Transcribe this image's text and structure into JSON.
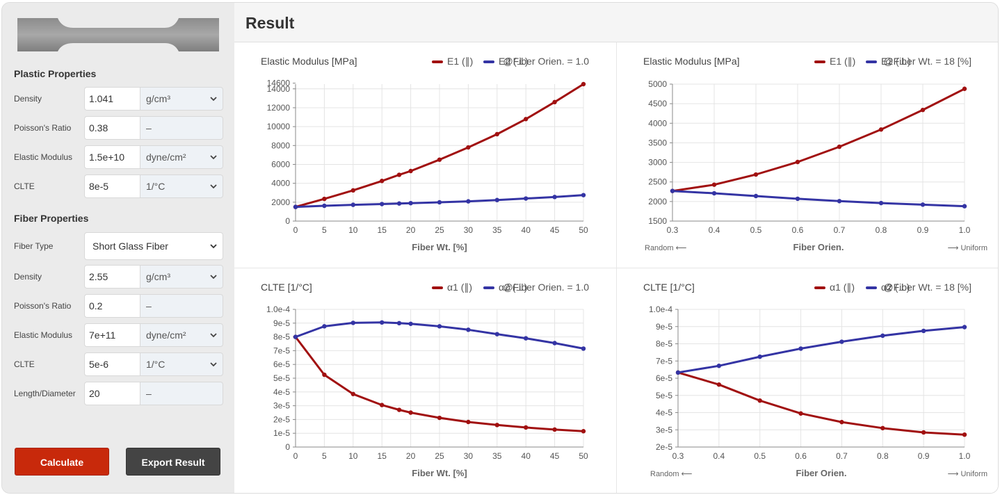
{
  "sidebar": {
    "plastic_title": "Plastic Properties",
    "plastic": [
      {
        "label": "Density",
        "value": "1.041",
        "unit": "g/cm³",
        "dropdown": true
      },
      {
        "label": "Poisson's Ratio",
        "value": "0.38",
        "unit": "–",
        "dropdown": false
      },
      {
        "label": "Elastic Modulus",
        "value": "1.5e+10",
        "unit": "dyne/cm²",
        "dropdown": true
      },
      {
        "label": "CLTE",
        "value": "8e-5",
        "unit": "1/°C",
        "dropdown": true
      }
    ],
    "fiber_title": "Fiber Properties",
    "fiber_type_label": "Fiber Type",
    "fiber_type_value": "Short Glass Fiber",
    "fiber": [
      {
        "label": "Density",
        "value": "2.55",
        "unit": "g/cm³",
        "dropdown": true
      },
      {
        "label": "Poisson's Ratio",
        "value": "0.2",
        "unit": "–",
        "dropdown": false
      },
      {
        "label": "Elastic Modulus",
        "value": "7e+11",
        "unit": "dyne/cm²",
        "dropdown": true
      },
      {
        "label": "CLTE",
        "value": "5e-6",
        "unit": "1/°C",
        "dropdown": true
      },
      {
        "label": "Length/Diameter",
        "value": "20",
        "unit": "–",
        "dropdown": false
      }
    ],
    "calculate_label": "Calculate",
    "export_label": "Export Result",
    "icons": {
      "chevron": "chevron-down-icon",
      "specimen": "tensile-specimen-image"
    }
  },
  "main": {
    "title": "Result"
  },
  "colors": {
    "series1": "#a11010",
    "series2": "#3434a4",
    "calculate": "#c8290b",
    "export": "#444444"
  },
  "chart_data": [
    {
      "type": "line",
      "title": "Elastic Modulus [MPa]",
      "condition": "@Fiber Orien. = 1.0",
      "xlabel": "Fiber Wt. [%]",
      "xlim": [
        0,
        50
      ],
      "xticks": [
        0,
        5,
        10,
        15,
        20,
        25,
        30,
        35,
        40,
        45,
        50
      ],
      "xticklabels": [
        "0",
        "5",
        "10",
        "15",
        "20",
        "25",
        "30",
        "35",
        "40",
        "45",
        "50"
      ],
      "ylim": [
        0,
        14500
      ],
      "yticks": [
        0,
        2000,
        4000,
        6000,
        8000,
        10000,
        12000,
        14000,
        14600
      ],
      "yticklabels": [
        "0",
        "2000",
        "4000",
        "6000",
        "8000",
        "10000",
        "12000",
        "14000",
        "14600"
      ],
      "x": [
        0,
        5,
        10,
        15,
        18,
        20,
        25,
        30,
        35,
        40,
        45,
        50
      ],
      "series": [
        {
          "name": "E1 (∥)",
          "color": "#a11010",
          "values": [
            1500,
            2350,
            3250,
            4250,
            4900,
            5300,
            6500,
            7800,
            9200,
            10800,
            12600,
            14500
          ]
        },
        {
          "name": "E2 (⊥)",
          "color": "#3434a4",
          "values": [
            1500,
            1620,
            1720,
            1800,
            1860,
            1900,
            1990,
            2090,
            2230,
            2390,
            2550,
            2750
          ]
        }
      ]
    },
    {
      "type": "line",
      "title": "Elastic Modulus [MPa]",
      "condition": "@Fiber Wt. = 18 [%]",
      "xlabel": "Fiber Orien.",
      "xleft": "Random ⟵",
      "xright": "⟶ Uniform",
      "xlim": [
        0.3,
        1.0
      ],
      "xticks": [
        0.3,
        0.4,
        0.5,
        0.6,
        0.7,
        0.8,
        0.9,
        1.0
      ],
      "xticklabels": [
        "0.3",
        "0.4",
        "0.5",
        "0.6",
        "0.7",
        "0.8",
        "0.9",
        "1.0"
      ],
      "ylim": [
        1500,
        5000
      ],
      "yticks": [
        1500,
        2000,
        2500,
        3000,
        3500,
        4000,
        4500,
        5000
      ],
      "yticklabels": [
        "1500",
        "2000",
        "2500",
        "3000",
        "3500",
        "4000",
        "4500",
        "5000"
      ],
      "x": [
        0.3,
        0.4,
        0.5,
        0.6,
        0.7,
        0.8,
        0.9,
        1.0
      ],
      "series": [
        {
          "name": "E1 (∥)",
          "color": "#a11010",
          "values": [
            2270,
            2430,
            2690,
            3010,
            3400,
            3840,
            4340,
            4880
          ]
        },
        {
          "name": "E2 (⊥)",
          "color": "#3434a4",
          "values": [
            2270,
            2210,
            2140,
            2070,
            2010,
            1960,
            1920,
            1880
          ]
        }
      ]
    },
    {
      "type": "line",
      "title": "CLTE [1/°C]",
      "condition": "@Fiber Orien. = 1.0",
      "xlabel": "Fiber Wt. [%]",
      "xlim": [
        0,
        50
      ],
      "xticks": [
        0,
        5,
        10,
        15,
        20,
        25,
        30,
        35,
        40,
        45,
        50
      ],
      "xticklabels": [
        "0",
        "5",
        "10",
        "15",
        "20",
        "25",
        "30",
        "35",
        "40",
        "45",
        "50"
      ],
      "ylim": [
        0,
        0.0001
      ],
      "yticks": [
        0,
        1e-05,
        2e-05,
        3e-05,
        4e-05,
        5e-05,
        6e-05,
        7e-05,
        8e-05,
        9e-05,
        0.0001
      ],
      "yticklabels": [
        "0",
        "1e-5",
        "2e-5",
        "3e-5",
        "4e-5",
        "5e-5",
        "6e-5",
        "7e-5",
        "8e-5",
        "9e-5",
        "1.0e-4"
      ],
      "x": [
        0,
        5,
        10,
        15,
        18,
        20,
        25,
        30,
        35,
        40,
        45,
        50
      ],
      "series": [
        {
          "name": "α1 (∥)",
          "color": "#a11010",
          "values": [
            8e-05,
            5.25e-05,
            3.85e-05,
            3.05e-05,
            2.7e-05,
            2.5e-05,
            2.12e-05,
            1.82e-05,
            1.6e-05,
            1.42e-05,
            1.27e-05,
            1.15e-05
          ]
        },
        {
          "name": "α2 (⊥)",
          "color": "#3434a4",
          "values": [
            8e-05,
            8.77e-05,
            9.02e-05,
            9.05e-05,
            9e-05,
            8.95e-05,
            8.77e-05,
            8.52e-05,
            8.2e-05,
            7.9e-05,
            7.55e-05,
            7.15e-05
          ]
        }
      ]
    },
    {
      "type": "line",
      "title": "CLTE [1/°C]",
      "condition": "@Fiber Wt. = 18 [%]",
      "xlabel": "Fiber Orien.",
      "xleft": "Random ⟵",
      "xright": "⟶ Uniform",
      "xlim": [
        0.3,
        1.0
      ],
      "xticks": [
        0.3,
        0.4,
        0.5,
        0.6,
        0.7,
        0.8,
        0.9,
        1.0
      ],
      "xticklabels": [
        "0.3",
        "0.4",
        "0.5",
        "0.6",
        "0.7",
        "0.8",
        "0.9",
        "1.0"
      ],
      "ylim": [
        2e-05,
        0.0001
      ],
      "yticks": [
        2e-05,
        3e-05,
        4e-05,
        5e-05,
        6e-05,
        7e-05,
        8e-05,
        9e-05,
        0.0001
      ],
      "yticklabels": [
        "2e-5",
        "3e-5",
        "4e-5",
        "5e-5",
        "6e-5",
        "7e-5",
        "8e-5",
        "9e-5",
        "1.0e-4"
      ],
      "x": [
        0.3,
        0.4,
        0.5,
        0.6,
        0.7,
        0.8,
        0.9,
        1.0
      ],
      "series": [
        {
          "name": "α1 (∥)",
          "color": "#a11010",
          "values": [
            6.33e-05,
            5.63e-05,
            4.7e-05,
            3.95e-05,
            3.45e-05,
            3.1e-05,
            2.85e-05,
            2.72e-05
          ]
        },
        {
          "name": "α2 (⊥)",
          "color": "#3434a4",
          "values": [
            6.33e-05,
            6.72e-05,
            7.25e-05,
            7.72e-05,
            8.12e-05,
            8.47e-05,
            8.75e-05,
            8.97e-05
          ]
        }
      ]
    }
  ]
}
